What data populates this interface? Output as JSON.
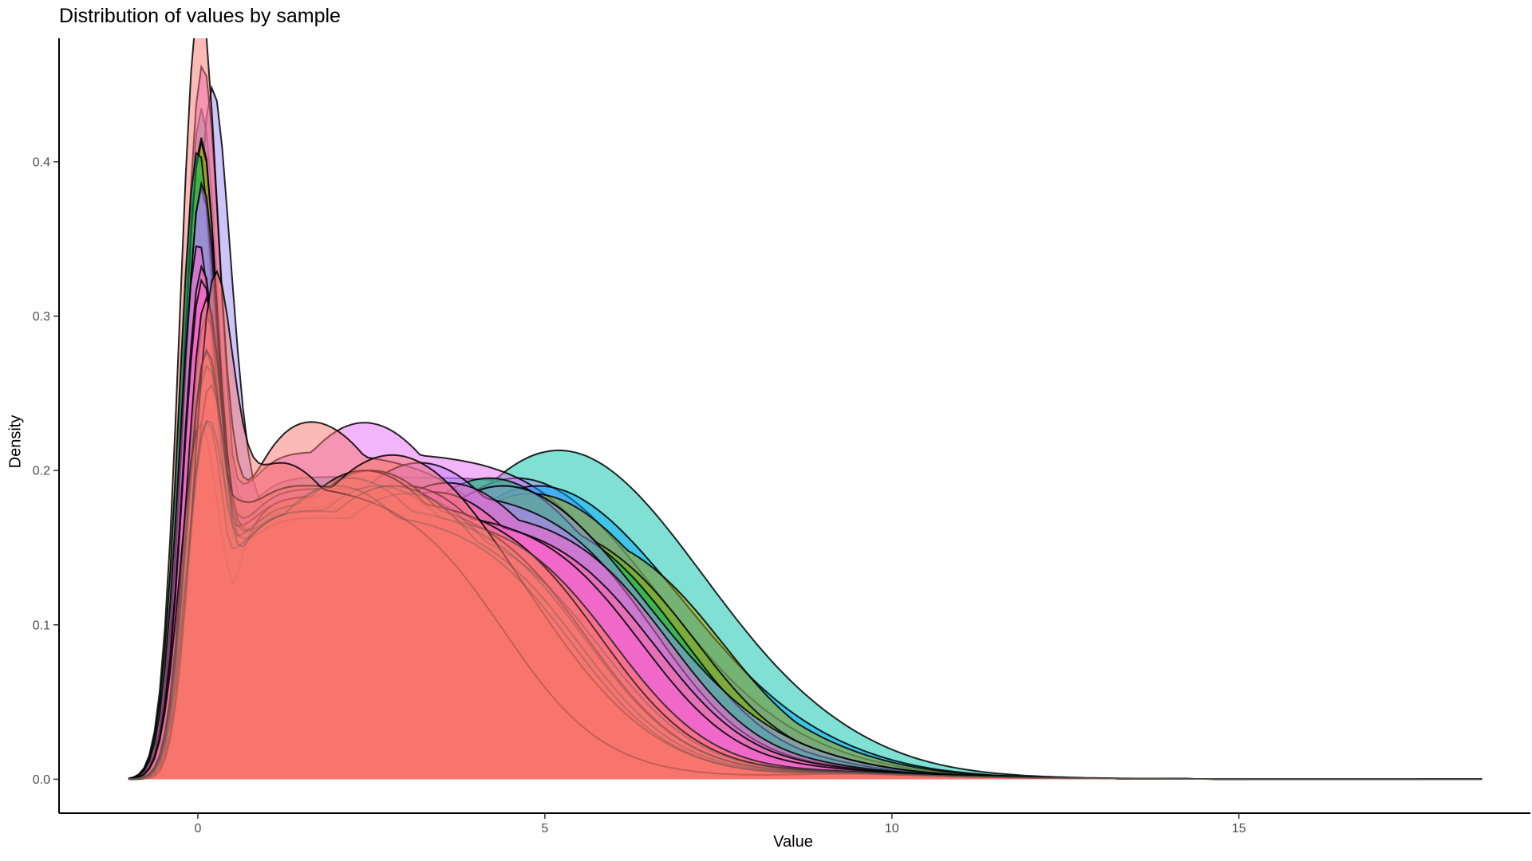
{
  "chart_data": {
    "type": "area",
    "title": "Distribution of values by sample",
    "xlabel": "Value",
    "ylabel": "Density",
    "xlim": [
      -2,
      19.2
    ],
    "ylim": [
      -0.022,
      0.48
    ],
    "x_ticks": [
      0,
      5,
      10,
      15
    ],
    "x_tick_labels": [
      "0",
      "5",
      "10",
      "15"
    ],
    "y_ticks": [
      0.0,
      0.1,
      0.2,
      0.3,
      0.4
    ],
    "y_tick_labels": [
      "0.0",
      "0.1",
      "0.2",
      "0.3",
      "0.4"
    ],
    "grid": false,
    "legend": "none",
    "series": [
      {
        "color": "#00C1A8",
        "peak_x": 0.05,
        "peak_y": 0.43,
        "second_x": 5.2,
        "second_y": 0.213,
        "tail": 7.6,
        "outline": "black"
      },
      {
        "color": "#9A8DF2",
        "peak_x": 0.2,
        "peak_y": 0.437,
        "second_x": 4.6,
        "second_y": 0.195,
        "tail": 7.0,
        "outline": "black"
      },
      {
        "color": "#E76BF3",
        "peak_x": 0.05,
        "peak_y": 0.42,
        "second_x": 2.4,
        "second_y": 0.231,
        "tail": 6.4,
        "outline": "black"
      },
      {
        "color": "#00A5FF",
        "peak_x": 0.0,
        "peak_y": 0.388,
        "second_x": 4.9,
        "second_y": 0.19,
        "tail": 7.4,
        "outline": "black"
      },
      {
        "color": "#F8766D",
        "peak_x": 0.0,
        "peak_y": 0.448,
        "second_x": 1.6,
        "second_y": 0.232,
        "tail": 5.2,
        "outline": "black"
      },
      {
        "color": "#ABA300",
        "peak_x": 0.05,
        "peak_y": 0.41,
        "second_x": 4.8,
        "second_y": 0.185,
        "tail": 7.6,
        "outline": "black"
      },
      {
        "color": "#7CAE00",
        "peak_x": 0.05,
        "peak_y": 0.405,
        "second_x": 4.4,
        "second_y": 0.19,
        "tail": 7.2,
        "outline": "black"
      },
      {
        "color": "#00BE67",
        "peak_x": 0.0,
        "peak_y": 0.4,
        "second_x": 4.2,
        "second_y": 0.195,
        "tail": 7.0,
        "outline": "black"
      },
      {
        "color": "#8B93FF",
        "peak_x": 0.05,
        "peak_y": 0.375,
        "second_x": 4.4,
        "second_y": 0.19,
        "tail": 6.9,
        "outline": "black"
      },
      {
        "color": "#C77CFF",
        "peak_x": 0.05,
        "peak_y": 0.364,
        "second_x": 3.2,
        "second_y": 0.205,
        "tail": 6.6,
        "outline": "black"
      },
      {
        "color": "#FF61CC",
        "peak_x": 0.0,
        "peak_y": 0.335,
        "second_x": 3.6,
        "second_y": 0.192,
        "tail": 6.8,
        "outline": "black"
      },
      {
        "color": "#FF68A1",
        "peak_x": 0.05,
        "peak_y": 0.315,
        "second_x": 3.4,
        "second_y": 0.186,
        "tail": 6.6,
        "outline": "black"
      },
      {
        "color": "#FB61D7",
        "peak_x": 0.05,
        "peak_y": 0.3,
        "second_x": 3.0,
        "second_y": 0.19,
        "tail": 6.4,
        "outline": "black"
      },
      {
        "color": "#F8766D",
        "peak_x": 0.1,
        "peak_y": 0.28,
        "second_x": 2.8,
        "second_y": 0.19,
        "tail": 6.0,
        "outline": "black"
      },
      {
        "color": "#F8766D",
        "peak_x": 0.1,
        "peak_y": 0.237,
        "second_x": 2.5,
        "second_y": 0.2,
        "tail": 5.6,
        "outline": "black"
      },
      {
        "color": "#F8766D",
        "peak_x": 0.0,
        "peak_y": 0.198,
        "second_x": 2.4,
        "second_y": 0.2,
        "tail": 5.8,
        "outline": "black"
      },
      {
        "color": "#F8766D",
        "peak_x": 0.15,
        "peak_y": 0.215,
        "second_x": 2.8,
        "second_y": 0.21,
        "tail": 4.8,
        "outline": "black"
      },
      {
        "color": "#F8766D",
        "peak_x": 0.2,
        "peak_y": 0.22,
        "second_x": 1.0,
        "second_y": 0.21,
        "tail": 4.4,
        "outline": "black"
      },
      {
        "color": "#F8766D",
        "peak_x": 0.1,
        "peak_y": 0.265,
        "second_x": 2.6,
        "second_y": 0.19,
        "tail": 6.0,
        "outline": "gray"
      },
      {
        "color": "#F8766D",
        "peak_x": 0.1,
        "peak_y": 0.25,
        "second_x": 3.0,
        "second_y": 0.185,
        "tail": 5.8,
        "outline": "gray"
      },
      {
        "color": "#F8766D",
        "peak_x": 0.1,
        "peak_y": 0.22,
        "second_x": 2.2,
        "second_y": 0.195,
        "tail": 5.6,
        "outline": "gray"
      },
      {
        "color": "#F8766D",
        "peak_x": 0.1,
        "peak_y": 0.2,
        "second_x": 2.8,
        "second_y": 0.19,
        "tail": 5.5,
        "outline": "gray"
      },
      {
        "color": "#F8766D",
        "peak_x": 0.1,
        "peak_y": 0.18,
        "second_x": 2.0,
        "second_y": 0.19,
        "tail": 5.4,
        "outline": "gray"
      }
    ]
  }
}
